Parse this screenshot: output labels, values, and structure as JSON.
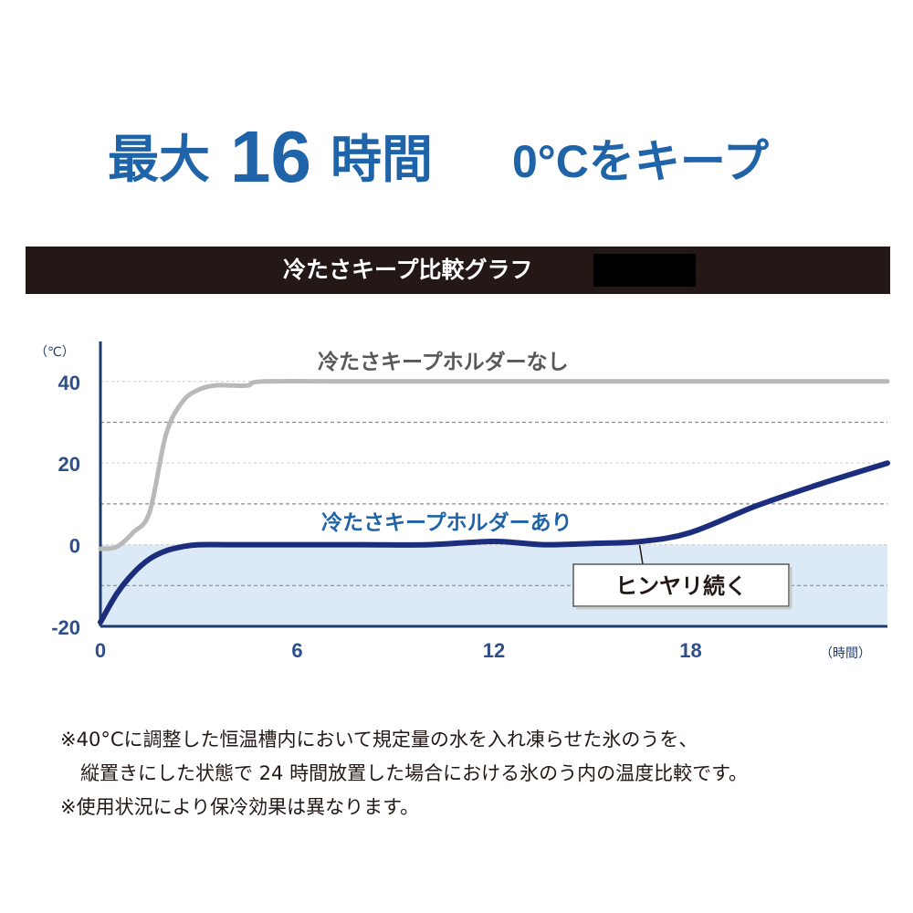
{
  "headline": {
    "prefix": "最大",
    "number": "16",
    "suffix": "時間",
    "keep_temp": "0°C",
    "keep_text": "をキープ",
    "color": "#1f63a8"
  },
  "banner": {
    "title": "冷たさキープ比較グラフ",
    "background": "#231815"
  },
  "chart_data": {
    "type": "line",
    "title": "冷たさキープ比較グラフ",
    "xlabel": "（時間）",
    "ylabel": "（℃）",
    "xlim": [
      0,
      24
    ],
    "ylim": [
      -20,
      48
    ],
    "x_ticks": [
      0,
      6,
      12,
      18
    ],
    "y_ticks": [
      40,
      20,
      0,
      -20
    ],
    "grid": true,
    "legend": "inline labels",
    "series": [
      {
        "name": "冷たさキープホルダーなし",
        "color": "#b9b9b9",
        "x": [
          0,
          0.5,
          1,
          1.5,
          2,
          2.5,
          3,
          3.5,
          4,
          4.5,
          5,
          8,
          12,
          16,
          20,
          24
        ],
        "y": [
          -1,
          -0.5,
          3,
          8,
          27,
          35,
          38,
          39,
          39,
          39,
          40,
          40,
          40,
          40,
          40,
          40
        ]
      },
      {
        "name": "冷たさキープホルダーあり",
        "color": "#1c2d7d",
        "x": [
          0,
          0.5,
          1,
          1.5,
          2,
          2.5,
          3,
          4,
          6,
          8,
          10,
          12,
          13.5,
          15,
          16.5,
          18,
          20,
          22,
          24
        ],
        "y": [
          -19,
          -12,
          -7,
          -3.5,
          -1.5,
          -0.5,
          0,
          0,
          0,
          0,
          0,
          0.8,
          0,
          0.3,
          0.8,
          3,
          9.5,
          15,
          20
        ]
      }
    ],
    "annotations": [
      {
        "text": "ヒンヤリ続く",
        "x": 16.5,
        "y": 0.8
      }
    ]
  },
  "notes": [
    "※40°Cに調整した恒温槽内において規定量の水を入れ凍らせた氷のうを、",
    "縦置きにした状態で 24 時間放置した場合における氷のう内の温度比較です。",
    "※使用状況により保冷効果は異なります。"
  ]
}
